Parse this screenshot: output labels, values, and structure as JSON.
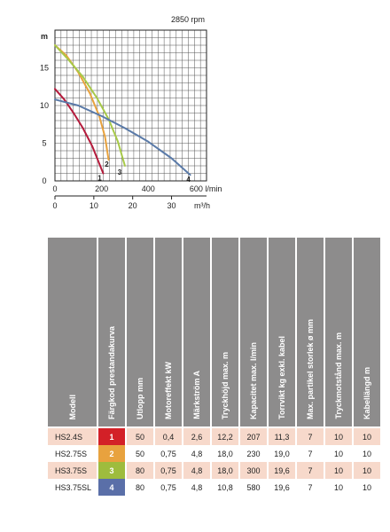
{
  "chart_data": {
    "type": "line",
    "title": "2850 rpm",
    "ylabel": "m",
    "ylim": [
      0,
      20
    ],
    "yticks": [
      0,
      5,
      10,
      15
    ],
    "x": {
      "label": "l/min",
      "range": [
        0,
        650
      ],
      "ticks": [
        0,
        200,
        400,
        600
      ],
      "tick_labels": [
        "0",
        "200",
        "400",
        "600 l/min"
      ]
    },
    "x2": {
      "label": "m³/h",
      "ticks": [
        0,
        10,
        20,
        30
      ],
      "tick_labels": [
        "0",
        "10",
        "20",
        "30",
        "m³/h"
      ]
    },
    "grid": true,
    "series": [
      {
        "name": "1",
        "color": "#b51b3c",
        "x": [
          0,
          40,
          80,
          120,
          160,
          190,
          207
        ],
        "y": [
          12.2,
          10.8,
          9.0,
          7.0,
          4.6,
          2.3,
          1.0
        ]
      },
      {
        "name": "2",
        "color": "#e8a23e",
        "x": [
          0,
          50,
          100,
          150,
          190,
          215,
          230
        ],
        "y": [
          18.0,
          16.6,
          14.4,
          11.6,
          8.6,
          5.8,
          2.8
        ]
      },
      {
        "name": "3",
        "color": "#a7c948",
        "x": [
          0,
          60,
          120,
          180,
          230,
          270,
          300
        ],
        "y": [
          18.0,
          16.0,
          13.8,
          11.0,
          8.2,
          5.2,
          2.0
        ]
      },
      {
        "name": "4",
        "color": "#5a7aa8",
        "x": [
          0,
          100,
          200,
          300,
          400,
          500,
          580
        ],
        "y": [
          10.8,
          10.0,
          8.6,
          7.0,
          5.2,
          3.0,
          0.8
        ]
      }
    ]
  },
  "table": {
    "headers": [
      "Modell",
      "Färgkod prestandakurva",
      "Utlopp mm",
      "Motoreffekt kW",
      "Märkström A",
      "Tryckhöjd max. m",
      "Kapacitet max. l/min",
      "Torrvikt kg exkl. kabel",
      "Max. partikel storlek ø mm",
      "Tryckmotstånd max. m",
      "Kabellängd m"
    ],
    "rows": [
      {
        "model": "HS2.4S",
        "code": "1",
        "code_color": "#d32027",
        "values": [
          "50",
          "0,4",
          "2,6",
          "12,2",
          "207",
          "11,3",
          "7",
          "10",
          "10"
        ]
      },
      {
        "model": "HS2.75S",
        "code": "2",
        "code_color": "#e8a23e",
        "values": [
          "50",
          "0,75",
          "4,8",
          "18,0",
          "230",
          "19,0",
          "7",
          "10",
          "10"
        ]
      },
      {
        "model": "HS3.75S",
        "code": "3",
        "code_color": "#9ebc3d",
        "values": [
          "80",
          "0,75",
          "4,8",
          "18,0",
          "300",
          "19,6",
          "7",
          "10",
          "10"
        ]
      },
      {
        "model": "HS3.75SL",
        "code": "4",
        "code_color": "#5a6fa8",
        "values": [
          "80",
          "0,75",
          "4,8",
          "10,8",
          "580",
          "19,6",
          "7",
          "10",
          "10"
        ]
      }
    ]
  }
}
